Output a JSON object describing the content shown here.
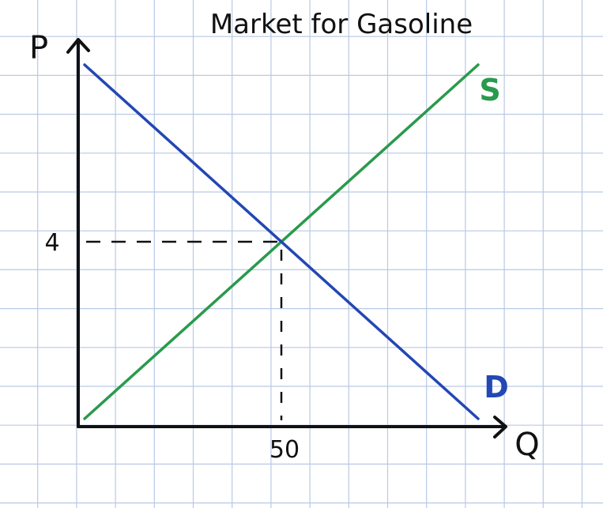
{
  "chart_data": {
    "type": "line",
    "title": "Market for Gasoline",
    "xlabel": "Q",
    "ylabel": "P",
    "grid": true,
    "xlim": [
      0,
      100
    ],
    "ylim": [
      0,
      8
    ],
    "x_ticks": [
      {
        "value": 50,
        "label": "50"
      }
    ],
    "y_ticks": [
      {
        "value": 4,
        "label": "4"
      }
    ],
    "series": [
      {
        "name": "S",
        "x": [
          0,
          100
        ],
        "y": [
          0,
          8
        ],
        "color": "#2a9a4c"
      },
      {
        "name": "D",
        "x": [
          0,
          100
        ],
        "y": [
          8,
          0
        ],
        "color": "#2347b4"
      }
    ],
    "equilibrium": {
      "x": 50,
      "y": 4
    }
  },
  "colors": {
    "grid": "#b8c9e6",
    "axis": "#111111",
    "supply": "#2a9a4c",
    "demand": "#2347b4"
  }
}
